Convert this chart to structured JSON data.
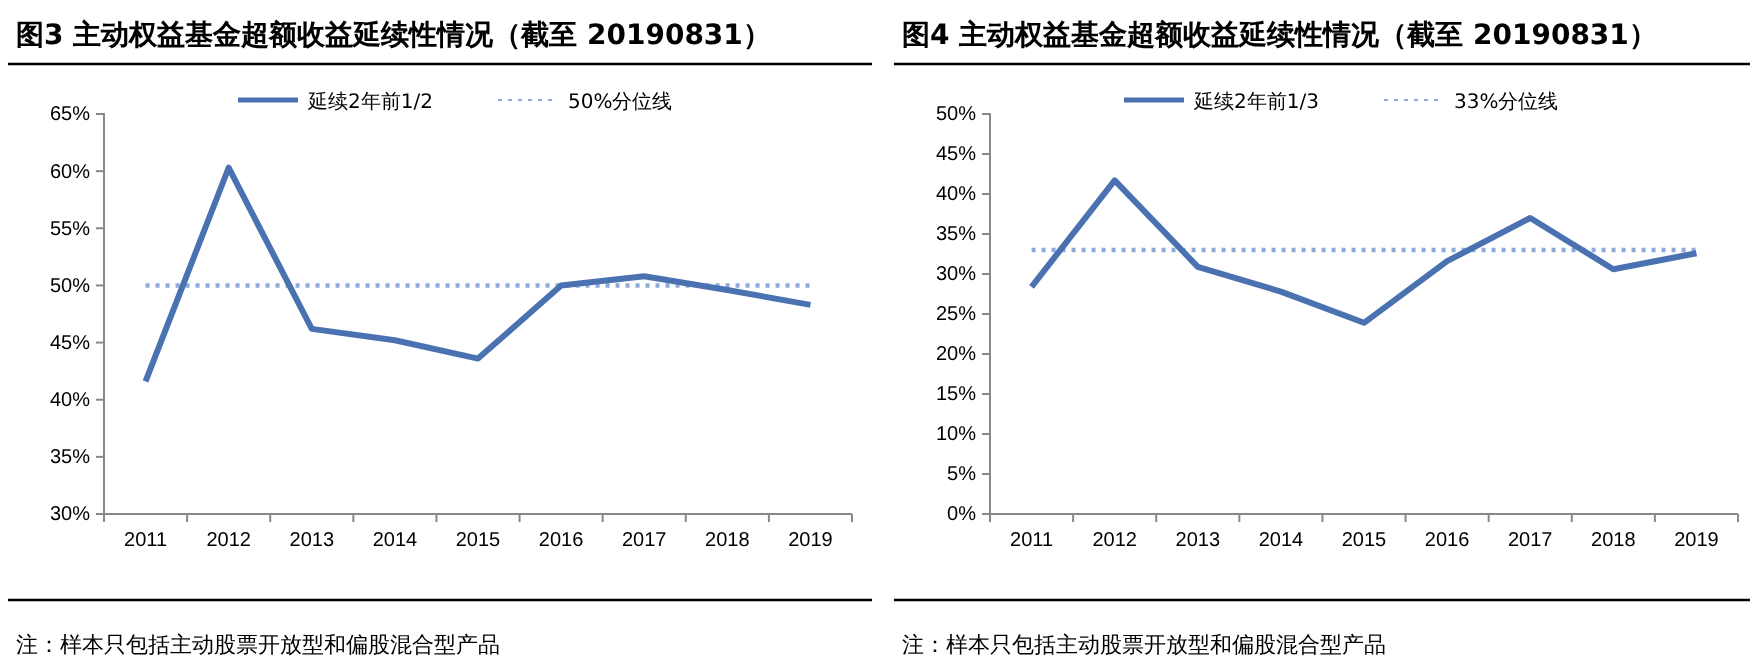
{
  "chart_data": [
    {
      "type": "line",
      "title": "图3  主动权益基金超额收益延续性情况（截至 20190831）",
      "categories": [
        "2011",
        "2012",
        "2013",
        "2014",
        "2015",
        "2016",
        "2017",
        "2018",
        "2019"
      ],
      "series": [
        {
          "name": "延续2年前1/2",
          "color": "#4a72b0",
          "values": [
            41.6,
            60.3,
            46.2,
            45.2,
            43.6,
            50.0,
            50.8,
            49.6,
            48.3
          ]
        }
      ],
      "ref_lines": [
        {
          "axis": "y",
          "value": 50,
          "label": "50%分位线",
          "color": "#8eaadb",
          "line_style": "dotted"
        }
      ],
      "ylim": [
        30,
        65
      ],
      "yticks": [
        {
          "value": 30,
          "label": "30%"
        },
        {
          "value": 35,
          "label": "35%"
        },
        {
          "value": 40,
          "label": "40%"
        },
        {
          "value": 45,
          "label": "45%"
        },
        {
          "value": 50,
          "label": "50%"
        },
        {
          "value": 55,
          "label": "55%"
        },
        {
          "value": 60,
          "label": "60%"
        },
        {
          "value": 65,
          "label": "65%"
        }
      ],
      "grid": false,
      "legend": "top",
      "marker": "none",
      "line_style": "solid",
      "annotations": [
        "注：样本只包括主动股票开放型和偏股混合型产品"
      ]
    },
    {
      "type": "line",
      "title": "图4  主动权益基金超额收益延续性情况（截至 20190831）",
      "categories": [
        "2011",
        "2012",
        "2013",
        "2014",
        "2015",
        "2016",
        "2017",
        "2018",
        "2019"
      ],
      "series": [
        {
          "name": "延续2年前1/3",
          "color": "#4a72b0",
          "values": [
            28.4,
            41.7,
            30.9,
            27.8,
            23.9,
            31.6,
            37.0,
            30.6,
            32.6
          ]
        }
      ],
      "ref_lines": [
        {
          "axis": "y",
          "value": 33,
          "label": "33%分位线",
          "color": "#8eaadb",
          "line_style": "dotted"
        }
      ],
      "ylim": [
        0,
        50
      ],
      "yticks": [
        {
          "value": 0,
          "label": "0%"
        },
        {
          "value": 5,
          "label": "5%"
        },
        {
          "value": 10,
          "label": "10%"
        },
        {
          "value": 15,
          "label": "15%"
        },
        {
          "value": 20,
          "label": "20%"
        },
        {
          "value": 25,
          "label": "25%"
        },
        {
          "value": 30,
          "label": "30%"
        },
        {
          "value": 35,
          "label": "35%"
        },
        {
          "value": 40,
          "label": "40%"
        },
        {
          "value": 45,
          "label": "45%"
        },
        {
          "value": 50,
          "label": "50%"
        }
      ],
      "grid": false,
      "legend": "top",
      "marker": "none",
      "line_style": "solid",
      "annotations": [
        "注：样本只包括主动股票开放型和偏股混合型产品"
      ]
    }
  ]
}
